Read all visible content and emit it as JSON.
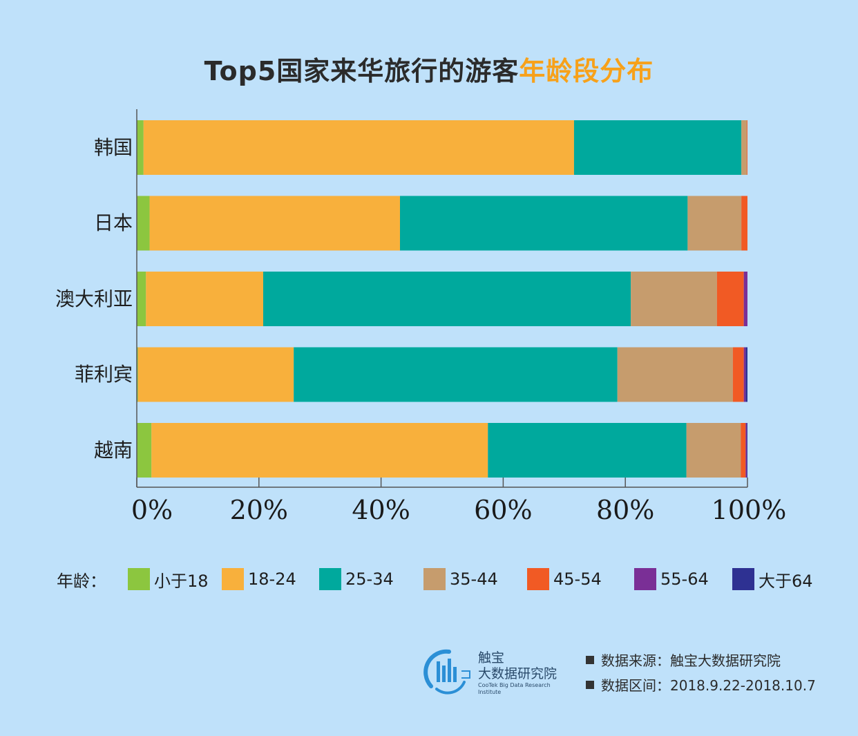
{
  "title": {
    "main": "Top5国家来华旅行的游客",
    "highlight": "年龄段分布",
    "highlight_color": "#f7a11a"
  },
  "chart_data": {
    "type": "bar",
    "orientation": "horizontal",
    "stacked": true,
    "normalized": true,
    "categories": [
      "韩国",
      "日本",
      "澳大利亚",
      "菲利宾",
      "越南"
    ],
    "series": [
      {
        "name": "小于18",
        "color": "#8cc63f",
        "values": [
          1.1,
          2.1,
          1.5,
          0.2,
          2.4
        ]
      },
      {
        "name": "18-24",
        "color": "#f8b03c",
        "values": [
          70.5,
          41.0,
          19.2,
          25.5,
          55.1
        ]
      },
      {
        "name": "25-34",
        "color": "#00a99d",
        "values": [
          27.4,
          47.1,
          60.2,
          53.0,
          32.5
        ]
      },
      {
        "name": "35-44",
        "color": "#c69c6d",
        "values": [
          0.9,
          8.8,
          14.1,
          18.9,
          8.9
        ]
      },
      {
        "name": "45-54",
        "color": "#f15a24",
        "values": [
          0.1,
          1.0,
          4.4,
          1.8,
          0.8
        ]
      },
      {
        "name": "55-64",
        "color": "#7a2f96",
        "values": [
          0,
          0,
          0.6,
          0.3,
          0.2
        ]
      },
      {
        "name": "大于64",
        "color": "#2e3192",
        "values": [
          0,
          0,
          0,
          0.3,
          0.1
        ]
      }
    ],
    "x_ticks": [
      "0%",
      "20%",
      "40%",
      "60%",
      "80%",
      "100%"
    ],
    "xlim": [
      0,
      100
    ],
    "grid": false,
    "legend_position": "bottom"
  },
  "legend": {
    "title": "年龄："
  },
  "brand": {
    "name_line1": "触宝",
    "name_line2": "大数据研究院",
    "name_en": "CooTek Big Data Research Institute"
  },
  "footer": {
    "source": "数据来源：触宝大数据研究院",
    "period": "数据区间：2018.9.22-2018.10.7"
  }
}
